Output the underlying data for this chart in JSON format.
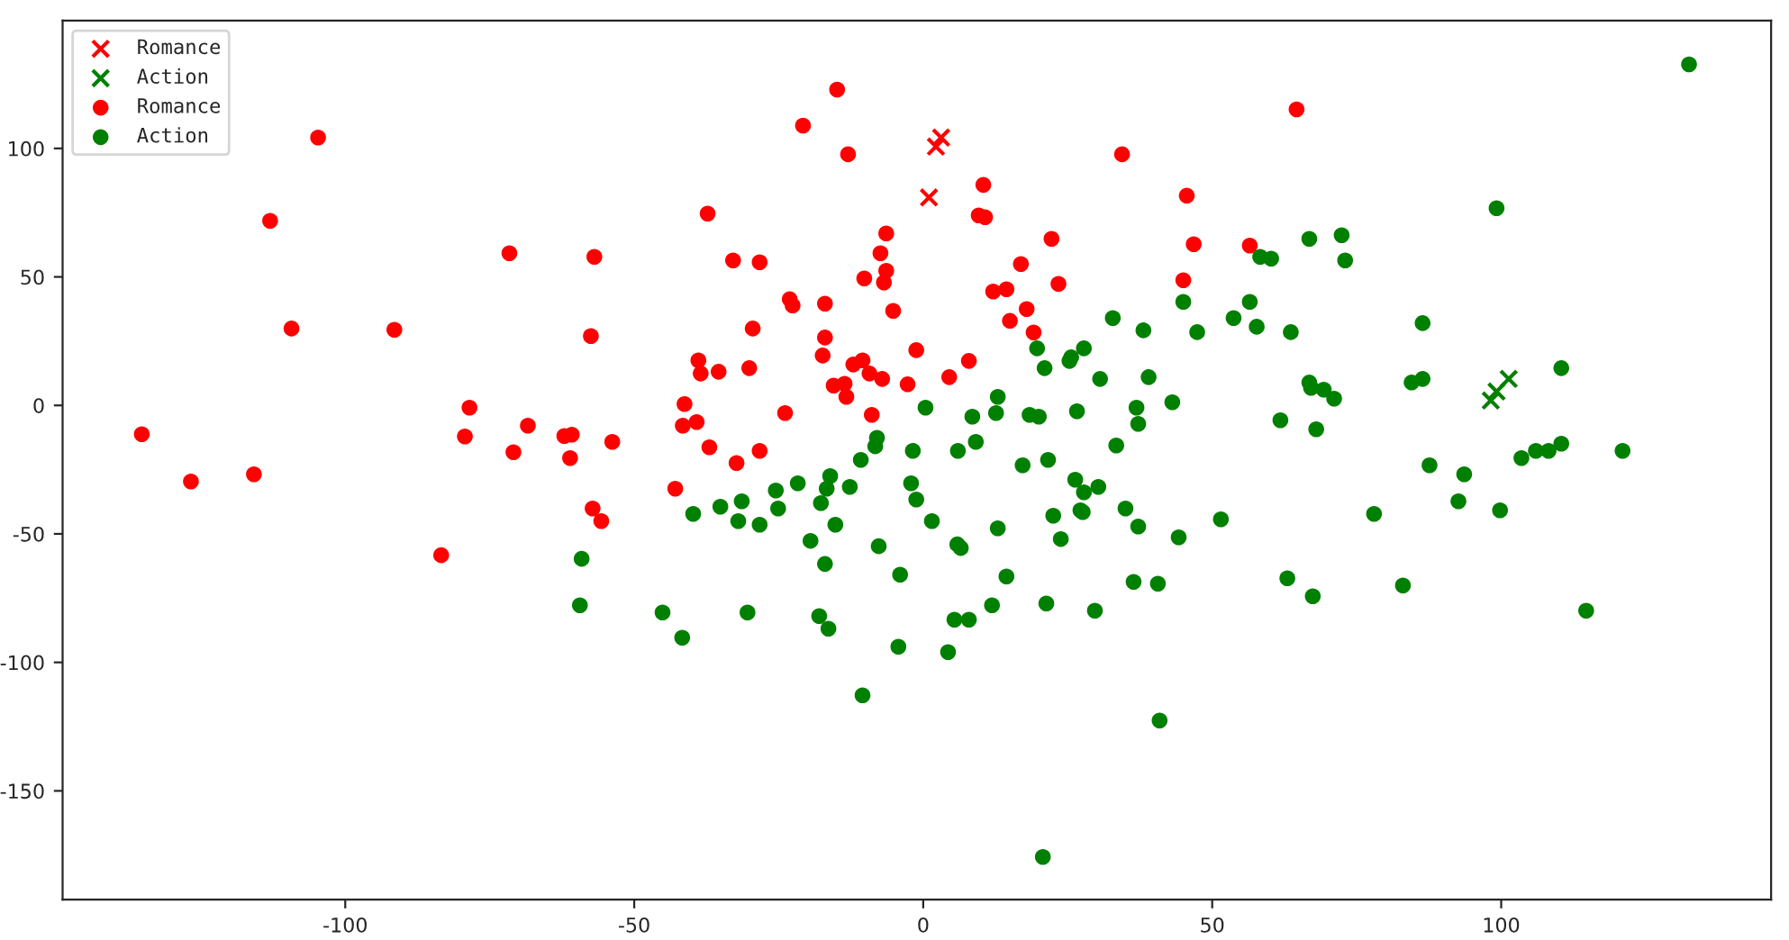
{
  "chart_data": {
    "type": "scatter",
    "xlim": [
      -148.9,
      146.7
    ],
    "ylim": [
      -192.3,
      149.7
    ],
    "xticks": [
      -100,
      -50,
      0,
      50,
      100
    ],
    "yticks": [
      -150,
      -100,
      -50,
      0,
      50,
      100
    ],
    "grid": false,
    "legend": "top left",
    "series": [
      {
        "name": "Romance",
        "color": "#ff0000",
        "marker": "cross",
        "x": [
          1,
          2.2,
          3.1
        ],
        "values": [
          80.9,
          100.7,
          104.2
        ]
      },
      {
        "name": "Action",
        "color": "#008000",
        "marker": "cross",
        "x": [
          98.2,
          99.2,
          101.3
        ],
        "values": [
          1.9,
          5.4,
          10.3
        ]
      },
      {
        "name": "Romance",
        "color": "#ff0000",
        "marker": "circle",
        "x": [
          -135.2,
          -126.7,
          -115.8,
          -104.7,
          -113,
          -109.3,
          -91.5,
          -71.6,
          -56.9,
          -57.5,
          -78.5,
          -79.3,
          -68.4,
          -70.9,
          -62.1,
          -60.8,
          -61.1,
          -53.8,
          -57.2,
          -55.7,
          -83.4,
          -14.9,
          -20.8,
          -13.0,
          34.4,
          10.4,
          45.6,
          -37.3,
          9.6,
          10.7,
          -6.4,
          22.2,
          46.8,
          -7.4,
          -32.9,
          -28.3,
          -6.4,
          -10.2,
          -6.8,
          16.9,
          23.4,
          12.1,
          14.4,
          45,
          -23.1,
          -22.6,
          -17,
          -5.2,
          17.9,
          15,
          19.1,
          -29.5,
          -17,
          -17.4,
          -1.2,
          -38.9,
          -38.5,
          -35.4,
          -30.1,
          -12.1,
          -10.5,
          7.9,
          -9.3,
          -7.1,
          -15.5,
          -13.6,
          -13.3,
          -2.7,
          4.5,
          -41.3,
          -41.6,
          -39.2,
          -23.9,
          -8.9,
          -37,
          -28.3,
          -32.3,
          -42.9,
          64.6,
          56.5
        ],
        "values": [
          -11.2,
          -29.6,
          -26.8,
          104.2,
          71.8,
          29.9,
          29.4,
          59.2,
          57.8,
          27,
          -0.9,
          -12.1,
          -7.9,
          -18.2,
          -11.9,
          -11.4,
          -20.5,
          -14.2,
          -40.1,
          -45,
          -58.3,
          122.9,
          108.9,
          97.7,
          97.7,
          85.8,
          81.6,
          74.6,
          73.9,
          73.2,
          66.9,
          64.8,
          62.7,
          59.2,
          56.4,
          55.7,
          52.4,
          49.4,
          47.8,
          55,
          47.3,
          44.3,
          45.2,
          48.7,
          41.3,
          38.9,
          39.6,
          36.8,
          37.5,
          32.9,
          28.4,
          29.9,
          26.4,
          19.4,
          21.5,
          17.5,
          12.4,
          13.1,
          14.5,
          15.9,
          17.5,
          17.3,
          12.4,
          10.3,
          7.7,
          8.4,
          3.3,
          8.2,
          11,
          0.5,
          -7.9,
          -6.5,
          -3,
          -3.7,
          -16.3,
          -17.7,
          -22.4,
          -32.4,
          115.2,
          62.2
        ]
      },
      {
        "name": "Action",
        "color": "#008000",
        "marker": "circle",
        "x": [
          -59.1,
          -59.4,
          32.8,
          38.1,
          19.7,
          27.8,
          21,
          25.3,
          25.6,
          30.6,
          39,
          12.9,
          43.1,
          0.4,
          12.6,
          8.5,
          18.4,
          20,
          26.6,
          36.9,
          37.2,
          -8,
          -8.3,
          -10.8,
          -1.8,
          6,
          9.1,
          17.2,
          21.6,
          33.4,
          132.5,
          99.2,
          66.8,
          72.4,
          73,
          58.3,
          60.2,
          45,
          56.5,
          53.7,
          47.4,
          57.7,
          63.6,
          86.4,
          110.4,
          66.8,
          67.1,
          69.3,
          71.1,
          84.5,
          86.4,
          61.8,
          68,
          87.6,
          103.5,
          106,
          108.2,
          110.4,
          121,
          93.6,
          92.6,
          99.8,
          78,
          51.5,
          44.2,
          63,
          67.4,
          83,
          114.7,
          -39.8,
          -35.1,
          -31.4,
          -32,
          -28.3,
          -25.5,
          -25.1,
          -21.7,
          -16.1,
          -16.7,
          -17.7,
          -12.7,
          -15.2,
          -19.5,
          -17,
          -7.7,
          -2.1,
          -1.2,
          1.5,
          -4,
          5.9,
          6.5,
          12.9,
          14.4,
          26.3,
          27.8,
          30.3,
          22.5,
          27.2,
          27.6,
          23.8,
          35,
          37.2,
          36.4,
          40.6,
          -45.1,
          -41.7,
          -30.4,
          -18,
          -16.4,
          -4.3,
          5.4,
          7.9,
          11.9,
          21.3,
          29.7,
          4.3,
          -10.5,
          40.9,
          20.7
        ],
        "values": [
          -59.7,
          -77.8,
          34,
          29.2,
          22.2,
          22.2,
          14.5,
          17.3,
          18.7,
          10.3,
          11,
          3.3,
          1.2,
          -0.9,
          -3,
          -4.4,
          -3.7,
          -4.4,
          -2.3,
          -0.9,
          -7.2,
          -12.6,
          -15.9,
          -21.2,
          -17.7,
          -17.7,
          -14.2,
          -23.3,
          -21.2,
          -15.6,
          132.7,
          76.7,
          64.8,
          66.2,
          56.4,
          57.8,
          57.1,
          40.3,
          40.3,
          34,
          28.5,
          30.6,
          28.5,
          32,
          14.5,
          8.9,
          6.8,
          6.1,
          2.6,
          8.9,
          10.3,
          -5.8,
          -9.3,
          -23.3,
          -20.5,
          -17.7,
          -17.7,
          -14.9,
          -17.7,
          -26.8,
          -37.3,
          -40.8,
          -42.2,
          -44.3,
          -51.3,
          -67.3,
          -74.3,
          -70.1,
          -79.9,
          -42.2,
          -39.4,
          -37.3,
          -45,
          -46.4,
          -33.1,
          -40.1,
          -30.3,
          -27.5,
          -32.4,
          -38,
          -31.7,
          -46.4,
          -52.7,
          -61.7,
          -54.8,
          -30.3,
          -36.6,
          -45,
          -65.9,
          -54.1,
          -55.5,
          -47.8,
          -66.6,
          -28.9,
          -33.8,
          -31.7,
          -42.9,
          -40.8,
          -41.5,
          -52,
          -40.1,
          -47.1,
          -68.7,
          -69.4,
          -80.6,
          -90.4,
          -80.6,
          -82,
          -86.9,
          -93.9,
          -83.4,
          -83.4,
          -77.8,
          -77.1,
          -79.9,
          -96,
          -112.8,
          -122.6,
          -175.7
        ]
      }
    ]
  }
}
